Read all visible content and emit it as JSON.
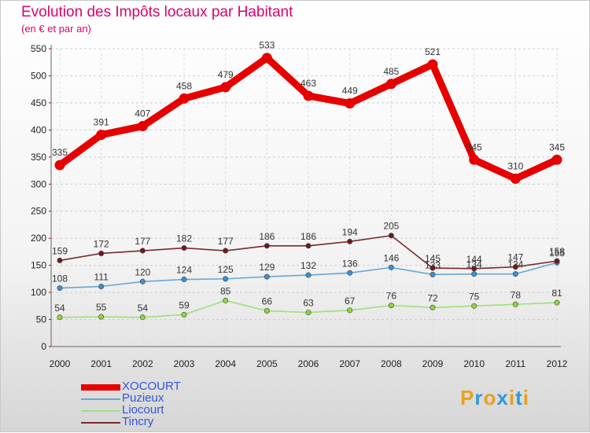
{
  "chart_data": {
    "type": "line",
    "title": "Evolution des Impôts locaux par Habitant",
    "subtitle": "(en € et par an)",
    "xlabel": "",
    "ylabel": "",
    "ylim": [
      0,
      550
    ],
    "yticks": [
      0,
      50,
      100,
      150,
      200,
      250,
      300,
      350,
      400,
      450,
      500,
      550
    ],
    "x": [
      "2000",
      "2001",
      "2002",
      "2003",
      "2004",
      "2005",
      "2006",
      "2007",
      "2008",
      "2009",
      "2010",
      "2011",
      "2012"
    ],
    "grid": "horizontal dashed",
    "legend": "bottom-left",
    "series": [
      {
        "name": "XOCOURT",
        "color": "#e60000",
        "marker": "#e60000",
        "values": [
          335,
          391,
          407,
          458,
          479,
          533,
          463,
          449,
          485,
          521,
          345,
          310,
          345
        ],
        "labels": [
          "335",
          "391",
          "407",
          "458",
          "479",
          "533",
          "463",
          "449",
          "485",
          "521",
          "345",
          "310",
          "345"
        ]
      },
      {
        "name": "Puzieux",
        "color": "#6aa6d2",
        "marker": "#3e8fd0",
        "values": [
          108,
          111,
          120,
          124,
          125,
          129,
          132,
          136,
          146,
          133,
          134,
          134,
          155
        ],
        "labels": [
          "108",
          "111",
          "120",
          "124",
          "125",
          "129",
          "132",
          "136",
          "146",
          "133",
          "134",
          "134",
          "155"
        ]
      },
      {
        "name": "Liocourt",
        "color": "#9ee07a",
        "marker": "#8ed63a",
        "values": [
          54,
          55,
          54,
          59,
          85,
          66,
          63,
          67,
          76,
          72,
          75,
          78,
          81
        ],
        "labels": [
          "54",
          "55",
          "54",
          "59",
          "85",
          "66",
          "63",
          "67",
          "76",
          "72",
          "75",
          "78",
          "81"
        ]
      },
      {
        "name": "Tincry",
        "color": "#7a2a2a",
        "marker": "#6e1a1a",
        "values": [
          159,
          172,
          177,
          182,
          177,
          186,
          186,
          194,
          205,
          145,
          144,
          147,
          158
        ],
        "labels": [
          "159",
          "172",
          "177",
          "182",
          "177",
          "186",
          "186",
          "194",
          "205",
          "145",
          "144",
          "147",
          "158"
        ]
      }
    ]
  },
  "logo": {
    "text": "Proxiti",
    "letters": [
      "P",
      "r",
      "o",
      "x",
      "i",
      "t",
      "i"
    ],
    "colors": [
      "#e8a020",
      "#2f9ad8",
      "#e8a020",
      "#2f9ad8",
      "#e8a020",
      "#2f9ad8",
      "#e8a020"
    ]
  }
}
